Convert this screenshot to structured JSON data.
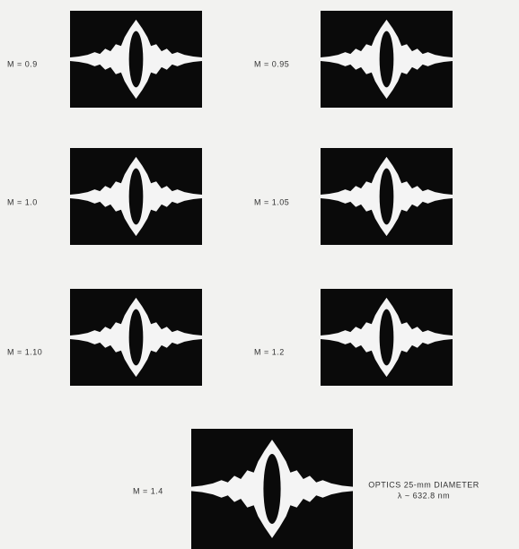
{
  "panels": [
    {
      "label": "M = 0.9"
    },
    {
      "label": "M = 0.95"
    },
    {
      "label": "M = 1.0"
    },
    {
      "label": "M = 1.05"
    },
    {
      "label": "M = 1.10"
    },
    {
      "label": "M = 1.2"
    },
    {
      "label": "M = 1.4"
    }
  ],
  "caption": {
    "line1": "OPTICS 25-mm DIAMETER",
    "line2": "λ ~ 632.8 nm"
  }
}
